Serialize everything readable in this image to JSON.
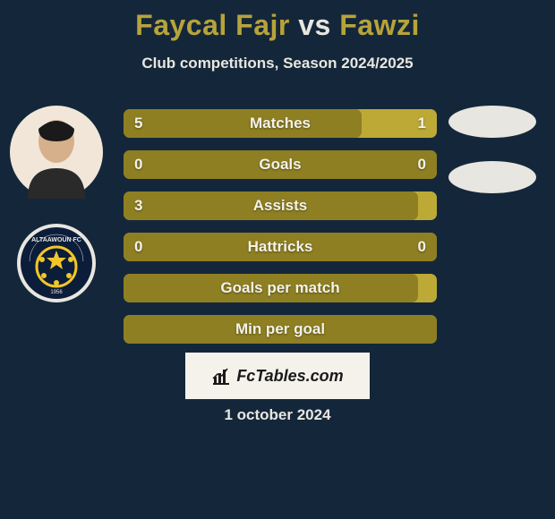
{
  "background_color": "#14273a",
  "title": {
    "player1": "Faycal Fajr",
    "vs": "vs",
    "player2": "Fawzi",
    "player1_color": "#b7a33b",
    "vs_color": "#e8e6e0",
    "player2_color": "#b7a33b",
    "fontsize": 32
  },
  "subtitle": {
    "text": "Club competitions, Season 2024/2025",
    "color": "#e8e6e0",
    "fontsize": 17
  },
  "avatars": {
    "player_photo_bg": "#f1e6d8",
    "club_logo_bg": "#0c1d3a",
    "club_logo_star_color": "#f2c62a",
    "ellipse1_bg": "#e8e6e0",
    "ellipse2_bg": "#e8e6e0"
  },
  "bars": {
    "track_color": "#bda936",
    "fill_color": "#8e7f23",
    "text_color": "#f4f2e9",
    "value_text_color": "#f4f2e9",
    "border_radius": 7,
    "label_fontsize": 17,
    "rows": [
      {
        "label": "Matches",
        "left": "5",
        "right": "1",
        "fill_pct": 76
      },
      {
        "label": "Goals",
        "left": "0",
        "right": "0",
        "fill_pct": 100
      },
      {
        "label": "Assists",
        "left": "3",
        "right": "",
        "fill_pct": 94
      },
      {
        "label": "Hattricks",
        "left": "0",
        "right": "0",
        "fill_pct": 100
      },
      {
        "label": "Goals per match",
        "left": "",
        "right": "",
        "fill_pct": 94
      },
      {
        "label": "Min per goal",
        "left": "",
        "right": "",
        "fill_pct": 100
      }
    ]
  },
  "branding": {
    "bg_color": "#f4f2ea",
    "text_color": "#1a1a1a",
    "text": "FcTables.com"
  },
  "date": {
    "text": "1 october 2024",
    "color": "#e8e6e0"
  }
}
